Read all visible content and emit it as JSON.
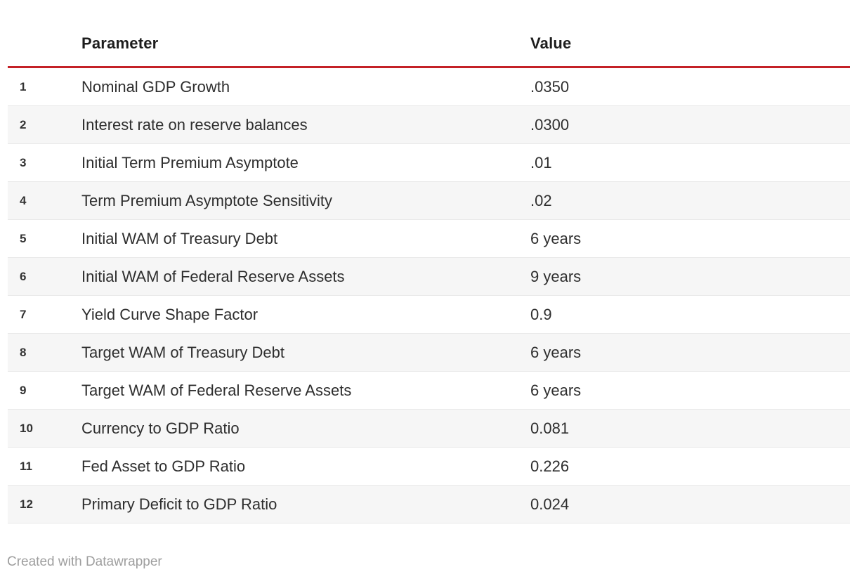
{
  "table": {
    "columns": [
      {
        "label": "Parameter"
      },
      {
        "label": "Value"
      }
    ],
    "rows": [
      {
        "num": "1",
        "parameter": "Nominal GDP Growth",
        "value": ".0350"
      },
      {
        "num": "2",
        "parameter": "Interest rate on reserve balances",
        "value": ".0300"
      },
      {
        "num": "3",
        "parameter": "Initial Term Premium Asymptote",
        "value": ".01"
      },
      {
        "num": "4",
        "parameter": "Term Premium Asymptote Sensitivity",
        "value": ".02"
      },
      {
        "num": "5",
        "parameter": "Initial WAM of Treasury Debt",
        "value": "6 years"
      },
      {
        "num": "6",
        "parameter": "Initial WAM of Federal Reserve Assets",
        "value": "9 years"
      },
      {
        "num": "7",
        "parameter": "Yield Curve Shape Factor",
        "value": "0.9"
      },
      {
        "num": "8",
        "parameter": "Target WAM of Treasury Debt",
        "value": "6 years"
      },
      {
        "num": "9",
        "parameter": "Target WAM of Federal Reserve Assets",
        "value": "6 years"
      },
      {
        "num": "10",
        "parameter": "Currency to GDP Ratio",
        "value": "0.081"
      },
      {
        "num": "11",
        "parameter": "Fed Asset to GDP Ratio",
        "value": "0.226"
      },
      {
        "num": "12",
        "parameter": "Primary Deficit to GDP Ratio",
        "value": "0.024"
      }
    ]
  },
  "footer": {
    "attribution": "Created with Datawrapper"
  },
  "colors": {
    "accent_rule": "#c42127",
    "row_alt_background": "#f6f6f6",
    "row_border": "#e9e9e9",
    "body_text": "#2e2e2e",
    "footer_text": "#9e9e9e"
  }
}
